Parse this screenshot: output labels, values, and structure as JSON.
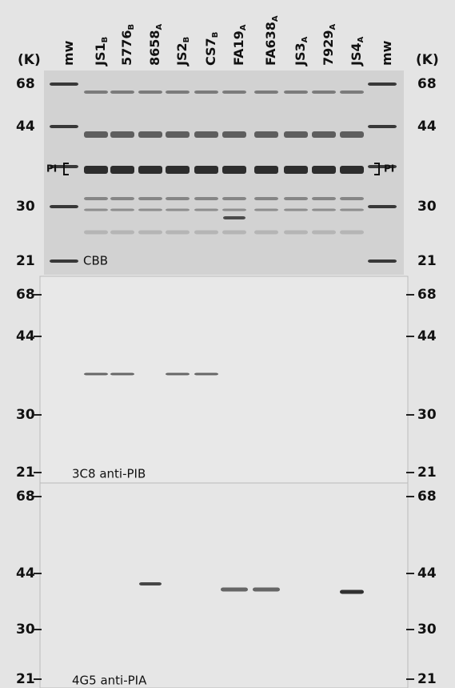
{
  "header": {
    "unit_left": "(K)",
    "unit_right": "(K)",
    "lanes": [
      {
        "name": "mw"
      },
      {
        "name": "JS1",
        "sub": "B"
      },
      {
        "name": "5776",
        "sub": "B"
      },
      {
        "name": "8658",
        "sub": "A"
      },
      {
        "name": "JS2",
        "sub": "B"
      },
      {
        "name": "CS7",
        "sub": "B"
      },
      {
        "name": "FA19",
        "sub": "A"
      },
      {
        "name": "FA638",
        "sub": "A"
      },
      {
        "name": "JS3",
        "sub": "A"
      },
      {
        "name": "7929",
        "sub": "A"
      },
      {
        "name": "JS4",
        "sub": "A"
      },
      {
        "name": "mw"
      }
    ]
  },
  "panels": [
    {
      "label": "CBB",
      "markers": [
        "68",
        "44",
        "30",
        "21"
      ],
      "band_label_left": "PI",
      "band_label_right": "PI"
    },
    {
      "label": "3C8 anti-PIB",
      "markers": [
        "68",
        "44",
        "30",
        "21"
      ]
    },
    {
      "label": "4G5 anti-PIA",
      "markers": [
        "68",
        "44",
        "30",
        "21"
      ]
    }
  ]
}
